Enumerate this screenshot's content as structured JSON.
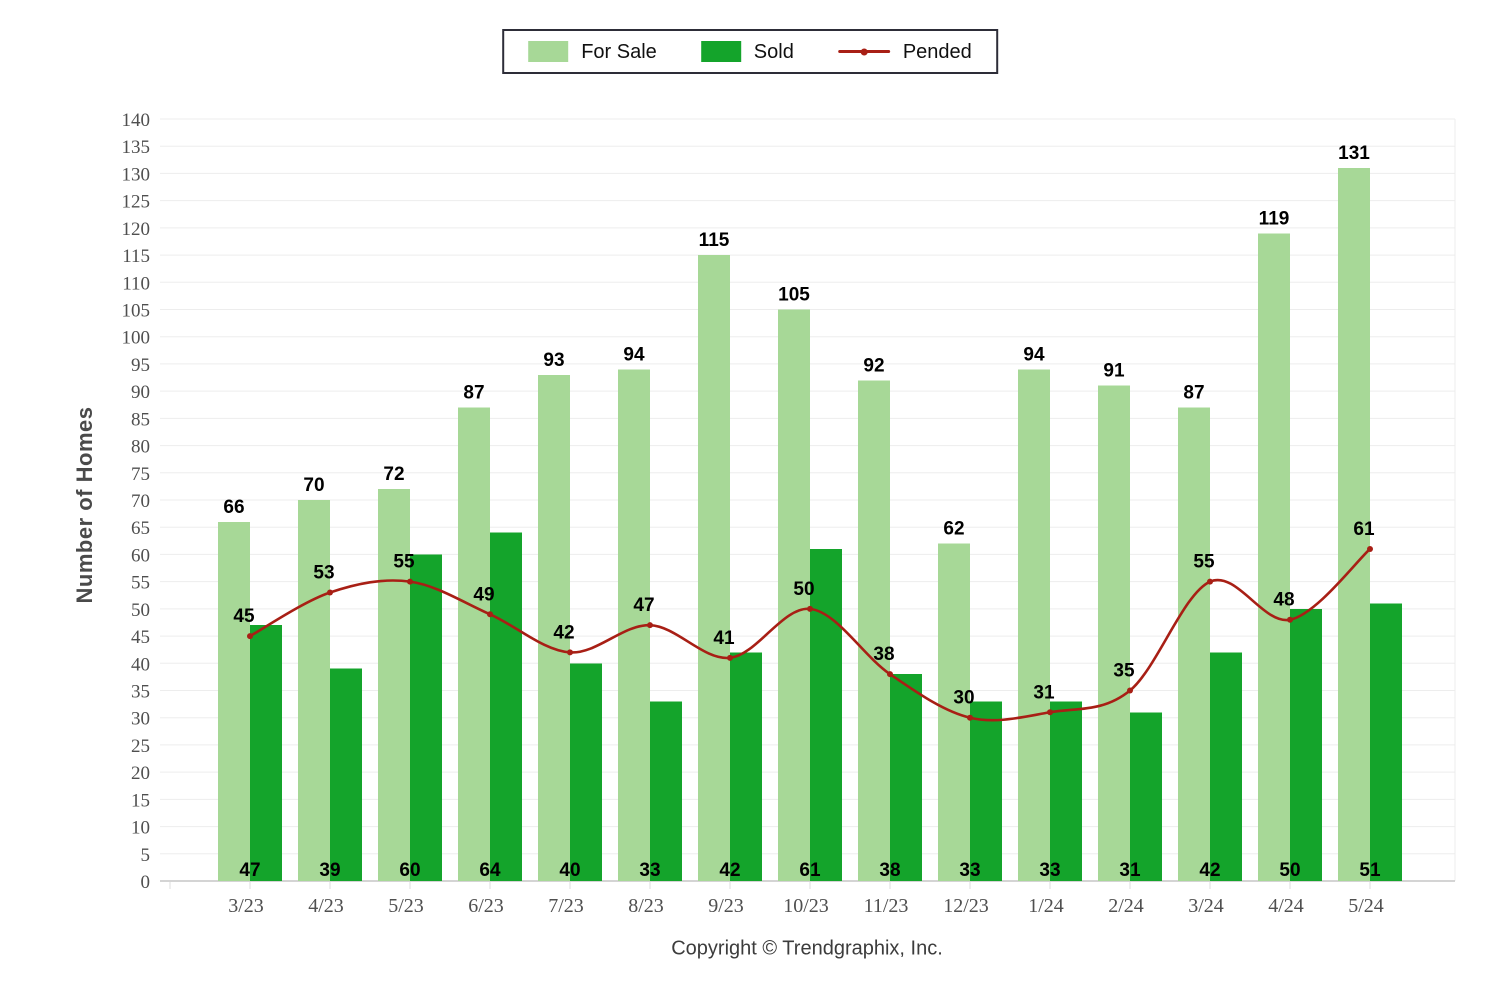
{
  "y_axis_title": "Number of Homes",
  "footer": {
    "text": "Copyright © Trendgraphix, Inc."
  },
  "colors": {
    "for_sale": "#a7d897",
    "sold": "#14a42b",
    "pended": "#a81f15",
    "label_text": "#000000",
    "tick_text": "#4f4f4f"
  },
  "chart_data": {
    "type": "bar",
    "subtype": "grouped bars with smooth line overlay",
    "title": "",
    "xlabel": "",
    "ylabel": "Number of Homes",
    "ylim": [
      0,
      140
    ],
    "ytick_step": 5,
    "grid": true,
    "legend_position": "top-center",
    "categories": [
      "3/23",
      "4/23",
      "5/23",
      "6/23",
      "7/23",
      "8/23",
      "9/23",
      "10/23",
      "11/23",
      "12/23",
      "1/24",
      "2/24",
      "3/24",
      "4/24",
      "5/24"
    ],
    "series": [
      {
        "name": "For Sale",
        "type": "bar",
        "color": "#a7d897",
        "values": [
          66,
          70,
          72,
          87,
          93,
          94,
          115,
          105,
          92,
          62,
          94,
          91,
          87,
          119,
          131
        ]
      },
      {
        "name": "Sold",
        "type": "bar",
        "color": "#14a42b",
        "values": [
          47,
          39,
          60,
          64,
          40,
          33,
          42,
          61,
          38,
          33,
          33,
          31,
          42,
          50,
          51
        ]
      },
      {
        "name": "Pended",
        "type": "line",
        "color": "#a81f15",
        "values": [
          45,
          53,
          55,
          49,
          42,
          47,
          41,
          50,
          38,
          30,
          31,
          35,
          55,
          48,
          61
        ]
      }
    ]
  }
}
